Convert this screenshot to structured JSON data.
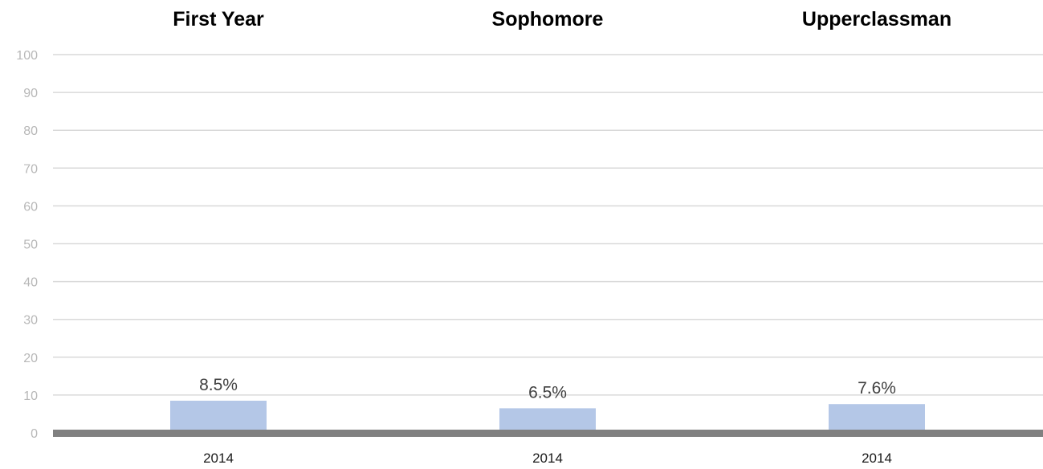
{
  "chart_data": {
    "type": "bar",
    "groups": [
      {
        "title": "First Year",
        "categories": [
          "2014"
        ],
        "values": [
          8.5
        ],
        "labels": [
          "8.5%"
        ]
      },
      {
        "title": "Sophomore",
        "categories": [
          "2014"
        ],
        "values": [
          6.5
        ],
        "labels": [
          "6.5%"
        ]
      },
      {
        "title": "Upperclassman",
        "categories": [
          "2014"
        ],
        "values": [
          7.6
        ],
        "labels": [
          "7.6%"
        ]
      }
    ],
    "y_ticks": [
      "0",
      "10",
      "20",
      "30",
      "40",
      "50",
      "60",
      "70",
      "80",
      "90",
      "100"
    ],
    "ylim": [
      0,
      100
    ],
    "grid": true,
    "legend": "none",
    "colors": {
      "bar": "#b4c7e7",
      "gridline": "#d9d9d9",
      "baseline": "#808080",
      "tick_text": "#b8b8b8"
    }
  }
}
